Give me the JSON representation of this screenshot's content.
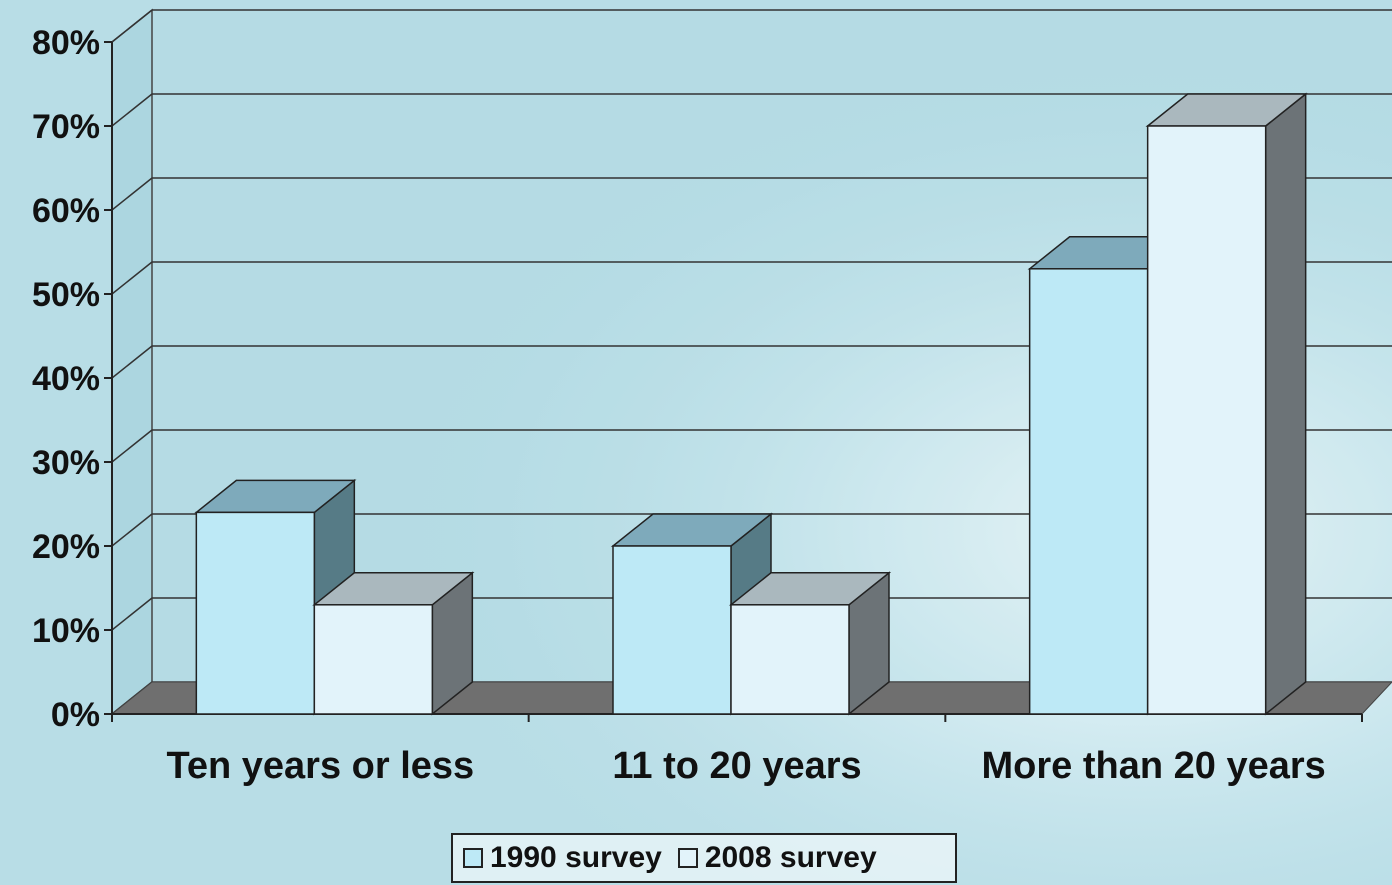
{
  "chart_data": {
    "type": "bar",
    "title": "",
    "xlabel": "",
    "ylabel": "",
    "categories": [
      "Ten years or less",
      "11 to 20 years",
      "More than 20 years"
    ],
    "series": [
      {
        "name": "1990 survey",
        "values": [
          24,
          20,
          53
        ],
        "color": "#bde9f6"
      },
      {
        "name": "2008 survey",
        "values": [
          13,
          13,
          70
        ],
        "color": "#e2f3fa"
      }
    ],
    "ylim": [
      0,
      80
    ],
    "yticks": [
      "0%",
      "10%",
      "20%",
      "30%",
      "40%",
      "50%",
      "60%",
      "70%",
      "80%"
    ],
    "grid": true,
    "three_d": true,
    "legend_position": "bottom"
  }
}
